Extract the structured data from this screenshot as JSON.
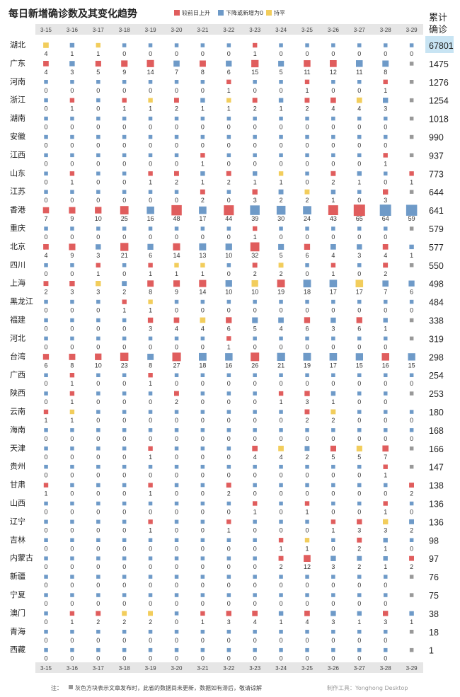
{
  "title": "每日新增确诊数及其变化趋势",
  "legend": [
    {
      "label": "较前日上升",
      "color": "#e05d5d"
    },
    {
      "label": "下降或新增为0",
      "color": "#6e9ac8"
    },
    {
      "label": "持平",
      "color": "#f2cd5c"
    }
  ],
  "total_header": [
    "累计",
    "确诊"
  ],
  "footer": {
    "note_prefix": "注：",
    "note": "灰色方块表示文章发布时，此省的数据尚未更新，数据如有滞后，敬请谅解",
    "tool": "制作工具：Yonghong Desktop",
    "gray_color": "#999999"
  },
  "chart_data": {
    "type": "heatmap",
    "title": "每日新增确诊数及其变化趋势",
    "dates": [
      "3-15",
      "3-16",
      "3-17",
      "3-18",
      "3-19",
      "3-20",
      "3-21",
      "3-22",
      "3-23",
      "3-24",
      "3-25",
      "3-26",
      "3-27",
      "3-28",
      "3-29"
    ],
    "provinces": [
      {
        "name": "湖北",
        "total": "67801",
        "values": [
          4,
          1,
          1,
          0,
          0,
          0,
          0,
          0,
          1,
          0,
          0,
          0,
          0,
          0,
          0
        ],
        "status": "yuubdddduddddd"
      },
      {
        "name": "广东",
        "total": "1475",
        "values": [
          4,
          3,
          5,
          9,
          14,
          7,
          8,
          6,
          15,
          5,
          11,
          12,
          11,
          8,
          null
        ],
        "status": "uduuududududddg"
      },
      {
        "name": "河南",
        "total": "1276",
        "values": [
          0,
          0,
          0,
          0,
          0,
          0,
          0,
          1,
          0,
          0,
          1,
          0,
          0,
          1,
          null
        ],
        "status": "bdddddddudduddug"
      },
      {
        "name": "浙江",
        "total": "1254",
        "values": [
          0,
          1,
          0,
          1,
          1,
          2,
          1,
          1,
          2,
          1,
          2,
          4,
          4,
          3,
          null
        ],
        "status": "buduyuddudddeuyg"
      },
      {
        "name": "湖南",
        "total": "1018",
        "values": [
          0,
          0,
          0,
          0,
          0,
          0,
          0,
          0,
          0,
          0,
          0,
          0,
          0,
          0,
          null
        ],
        "status": "bddddddddddddddg"
      },
      {
        "name": "安徽",
        "total": "990",
        "values": [
          0,
          0,
          0,
          0,
          0,
          0,
          0,
          0,
          0,
          0,
          0,
          0,
          0,
          0,
          null
        ],
        "status": "bddddddddddddddg"
      },
      {
        "name": "江西",
        "total": "937",
        "values": [
          0,
          0,
          0,
          0,
          0,
          0,
          1,
          0,
          0,
          0,
          0,
          0,
          0,
          1,
          null
        ],
        "status": "bddddduddddddug"
      },
      {
        "name": "山东",
        "total": "773",
        "values": [
          0,
          1,
          0,
          0,
          1,
          2,
          1,
          2,
          1,
          1,
          0,
          2,
          1,
          0,
          1
        ],
        "status": "bududuudddduddu"
      },
      {
        "name": "江苏",
        "total": "644",
        "values": [
          0,
          0,
          0,
          0,
          0,
          0,
          2,
          0,
          3,
          2,
          2,
          1,
          0,
          3,
          null
        ],
        "status": "bddddduduyydduG"
      },
      {
        "name": "香港",
        "total": "641",
        "values": [
          7,
          9,
          10,
          25,
          16,
          48,
          17,
          44,
          39,
          30,
          24,
          43,
          65,
          64,
          59
        ],
        "status": "uuuuduuudddudddd"
      },
      {
        "name": "重庆",
        "total": "579",
        "values": [
          0,
          0,
          0,
          0,
          0,
          0,
          0,
          0,
          1,
          0,
          0,
          0,
          0,
          0,
          null
        ],
        "status": "bddddddduddddddg"
      },
      {
        "name": "北京",
        "total": "577",
        "values": [
          4,
          9,
          3,
          21,
          6,
          14,
          13,
          10,
          32,
          5,
          6,
          4,
          3,
          4,
          1
        ],
        "status": "buduuudduduuddud"
      },
      {
        "name": "四川",
        "total": "550",
        "values": [
          0,
          0,
          1,
          0,
          1,
          1,
          1,
          0,
          2,
          2,
          0,
          1,
          0,
          2,
          null
        ],
        "status": "bdduudyyduyddudug"
      },
      {
        "name": "上海",
        "total": "498",
        "values": [
          2,
          3,
          3,
          2,
          8,
          9,
          14,
          10,
          10,
          19,
          18,
          17,
          17,
          7,
          6
        ],
        "status": "uuyduuuudyuddydd"
      },
      {
        "name": "黑龙江",
        "total": "484",
        "values": [
          0,
          0,
          0,
          1,
          1,
          0,
          0,
          0,
          0,
          0,
          0,
          0,
          0,
          0,
          0
        ],
        "status": "bdduyddddddddddd"
      },
      {
        "name": "福建",
        "total": "338",
        "values": [
          0,
          0,
          0,
          0,
          3,
          4,
          4,
          6,
          5,
          4,
          6,
          3,
          6,
          1,
          null
        ],
        "status": "bdddduuyuddududg"
      },
      {
        "name": "河北",
        "total": "319",
        "values": [
          0,
          0,
          0,
          0,
          0,
          0,
          0,
          1,
          0,
          0,
          0,
          0,
          0,
          0,
          null
        ],
        "status": "bddddddduddddddg"
      },
      {
        "name": "台湾",
        "total": "298",
        "values": [
          6,
          8,
          10,
          23,
          8,
          27,
          18,
          16,
          26,
          21,
          19,
          17,
          15,
          16,
          15
        ],
        "status": "uuuududdudddduddd"
      },
      {
        "name": "广西",
        "total": "254",
        "values": [
          0,
          1,
          0,
          0,
          1,
          0,
          0,
          0,
          0,
          0,
          0,
          0,
          0,
          0,
          0
        ],
        "status": "buddudddddddddd"
      },
      {
        "name": "陕西",
        "total": "253",
        "values": [
          0,
          1,
          0,
          0,
          0,
          2,
          0,
          0,
          0,
          1,
          3,
          1,
          0,
          0,
          null
        ],
        "status": "bdudddudddduudddg"
      },
      {
        "name": "云南",
        "total": "180",
        "values": [
          1,
          1,
          0,
          0,
          0,
          0,
          0,
          0,
          0,
          0,
          2,
          2,
          0,
          0,
          0
        ],
        "status": "uydddddddduyddd"
      },
      {
        "name": "海南",
        "total": "168",
        "values": [
          0,
          0,
          0,
          0,
          0,
          0,
          0,
          0,
          0,
          0,
          0,
          0,
          0,
          0,
          0
        ],
        "status": "bddddddddddddddd"
      },
      {
        "name": "天津",
        "total": "166",
        "values": [
          0,
          0,
          0,
          0,
          1,
          0,
          0,
          0,
          4,
          4,
          2,
          5,
          5,
          7,
          null
        ],
        "status": "bddduddduydyyuug"
      },
      {
        "name": "贵州",
        "total": "147",
        "values": [
          0,
          0,
          0,
          0,
          0,
          0,
          0,
          0,
          0,
          0,
          0,
          0,
          0,
          1,
          null
        ],
        "status": "bdddddddddddddug"
      },
      {
        "name": "甘肃",
        "total": "138",
        "values": [
          1,
          0,
          0,
          0,
          1,
          0,
          0,
          2,
          0,
          0,
          0,
          0,
          0,
          0,
          2
        ],
        "status": "uddduddudddddddu"
      },
      {
        "name": "山西",
        "total": "136",
        "values": [
          0,
          0,
          0,
          0,
          0,
          0,
          0,
          0,
          1,
          0,
          1,
          0,
          0,
          1,
          0
        ],
        "status": "bddddddduddududd"
      },
      {
        "name": "辽宁",
        "total": "136",
        "values": [
          0,
          0,
          0,
          0,
          1,
          0,
          0,
          1,
          0,
          0,
          0,
          1,
          3,
          3,
          2
        ],
        "status": "bdddudduddduuyyd"
      },
      {
        "name": "吉林",
        "total": "98",
        "values": [
          0,
          0,
          0,
          0,
          0,
          0,
          0,
          0,
          0,
          1,
          1,
          0,
          2,
          1,
          0
        ],
        "status": "bddddddddduyduddd"
      },
      {
        "name": "内蒙古",
        "total": "97",
        "values": [
          0,
          0,
          0,
          0,
          0,
          0,
          0,
          0,
          0,
          2,
          12,
          3,
          2,
          1,
          2
        ],
        "status": "bddddddddduudddu"
      },
      {
        "name": "新疆",
        "total": "76",
        "values": [
          0,
          0,
          0,
          0,
          0,
          0,
          0,
          0,
          0,
          0,
          0,
          0,
          0,
          0,
          null
        ],
        "status": "bddddddddddddddg"
      },
      {
        "name": "宁夏",
        "total": "75",
        "values": [
          0,
          0,
          0,
          0,
          0,
          0,
          0,
          0,
          0,
          0,
          0,
          0,
          0,
          0,
          null
        ],
        "status": "bddddddddddddddg"
      },
      {
        "name": "澳门",
        "total": "38",
        "values": [
          0,
          1,
          2,
          2,
          2,
          0,
          1,
          3,
          4,
          1,
          4,
          3,
          1,
          3,
          1
        ],
        "status": "buuyydududududud"
      },
      {
        "name": "青海",
        "total": "18",
        "values": [
          0,
          0,
          0,
          0,
          0,
          0,
          0,
          0,
          0,
          0,
          0,
          0,
          0,
          0,
          null
        ],
        "status": "bddddddddddddddg"
      },
      {
        "name": "西藏",
        "total": "1",
        "values": [
          0,
          0,
          0,
          0,
          0,
          0,
          0,
          0,
          0,
          0,
          0,
          0,
          0,
          0,
          null
        ],
        "status": "bddddddddddddddg"
      }
    ]
  }
}
